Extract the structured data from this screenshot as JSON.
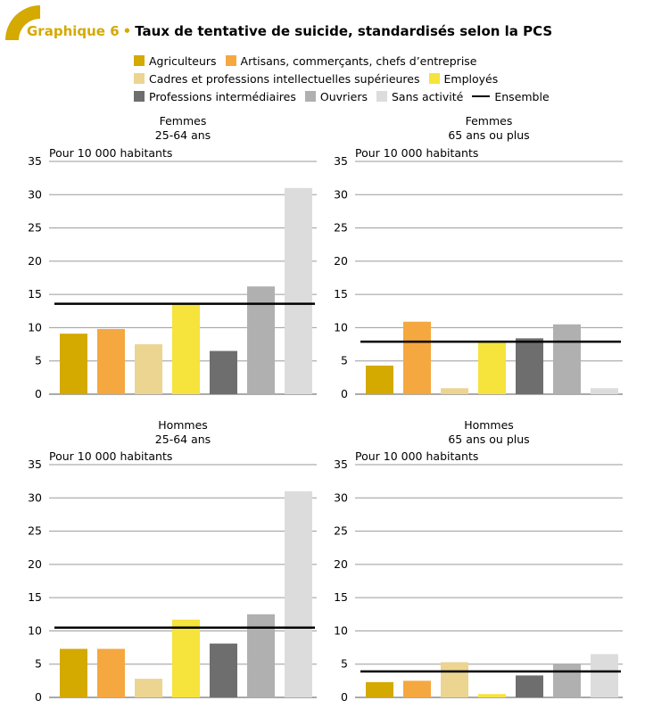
{
  "header": {
    "prefix": "Graphique 6",
    "dot": "•",
    "title": "Taux de tentative de suicide, standardisés selon la PCS"
  },
  "colors": {
    "accent": "#d4a900",
    "categories": [
      "#d4a900",
      "#f5a840",
      "#ecd491",
      "#f6e33c",
      "#6e6e6e",
      "#b0b0b0",
      "#dcdcdc"
    ],
    "ensemble": "#000000"
  },
  "legend": {
    "items": [
      "Agriculteurs",
      "Artisans, commerçants, chefs d’entreprise",
      "Cadres et professions intellectuelles supérieures",
      "Employés",
      "Professions intermédiaires",
      "Ouvriers",
      "Sans activité"
    ],
    "line_label": "Ensemble"
  },
  "chart_data": [
    {
      "type": "bar",
      "title": "Femmes",
      "subtitle": "25-64 ans",
      "ylabel": "Pour 10 000 habitants",
      "categories": [
        "Agriculteurs",
        "Artisans, commerçants, chefs d’entreprise",
        "Cadres et professions intellectuelles supérieures",
        "Employés",
        "Professions intermédiaires",
        "Ouvriers",
        "Sans activité"
      ],
      "values": [
        9.1,
        9.8,
        7.5,
        13.5,
        6.5,
        16.2,
        31.0
      ],
      "ensemble": 13.6,
      "ylim": [
        0,
        35
      ],
      "yticks": [
        "0",
        "5",
        "10",
        "15",
        "20",
        "25",
        "30",
        "35"
      ]
    },
    {
      "type": "bar",
      "title": "Femmes",
      "subtitle": "65 ans ou plus",
      "ylabel": "Pour 10 000 habitants",
      "categories": [
        "Agriculteurs",
        "Artisans, commerçants, chefs d’entreprise",
        "Cadres et professions intellectuelles supérieures",
        "Employés",
        "Professions intermédiaires",
        "Ouvriers",
        "Sans activité"
      ],
      "values": [
        4.3,
        10.9,
        0.9,
        7.9,
        8.4,
        10.5,
        0.9
      ],
      "ensemble": 7.9,
      "ylim": [
        0,
        35
      ],
      "yticks": [
        "0",
        "5",
        "10",
        "15",
        "20",
        "25",
        "30",
        "35"
      ]
    },
    {
      "type": "bar",
      "title": "Hommes",
      "subtitle": "25-64 ans",
      "ylabel": "Pour 10 000 habitants",
      "categories": [
        "Agriculteurs",
        "Artisans, commerçants, chefs d’entreprise",
        "Cadres et professions intellectuelles supérieures",
        "Employés",
        "Professions intermédiaires",
        "Ouvriers",
        "Sans activité"
      ],
      "values": [
        7.3,
        7.3,
        2.8,
        11.7,
        8.1,
        12.5,
        31.0
      ],
      "ensemble": 10.5,
      "ylim": [
        0,
        35
      ],
      "yticks": [
        "0",
        "5",
        "10",
        "15",
        "20",
        "25",
        "30",
        "35"
      ]
    },
    {
      "type": "bar",
      "title": "Hommes",
      "subtitle": "65 ans ou plus",
      "ylabel": "Pour 10 000 habitants",
      "categories": [
        "Agriculteurs",
        "Artisans, commerçants, chefs d’entreprise",
        "Cadres et professions intellectuelles supérieures",
        "Employés",
        "Professions intermédiaires",
        "Ouvriers",
        "Sans activité"
      ],
      "values": [
        2.3,
        2.5,
        5.3,
        0.5,
        3.3,
        5.1,
        6.5
      ],
      "ensemble": 3.9,
      "ylim": [
        0,
        35
      ],
      "yticks": [
        "0",
        "5",
        "10",
        "15",
        "20",
        "25",
        "30",
        "35"
      ]
    }
  ]
}
